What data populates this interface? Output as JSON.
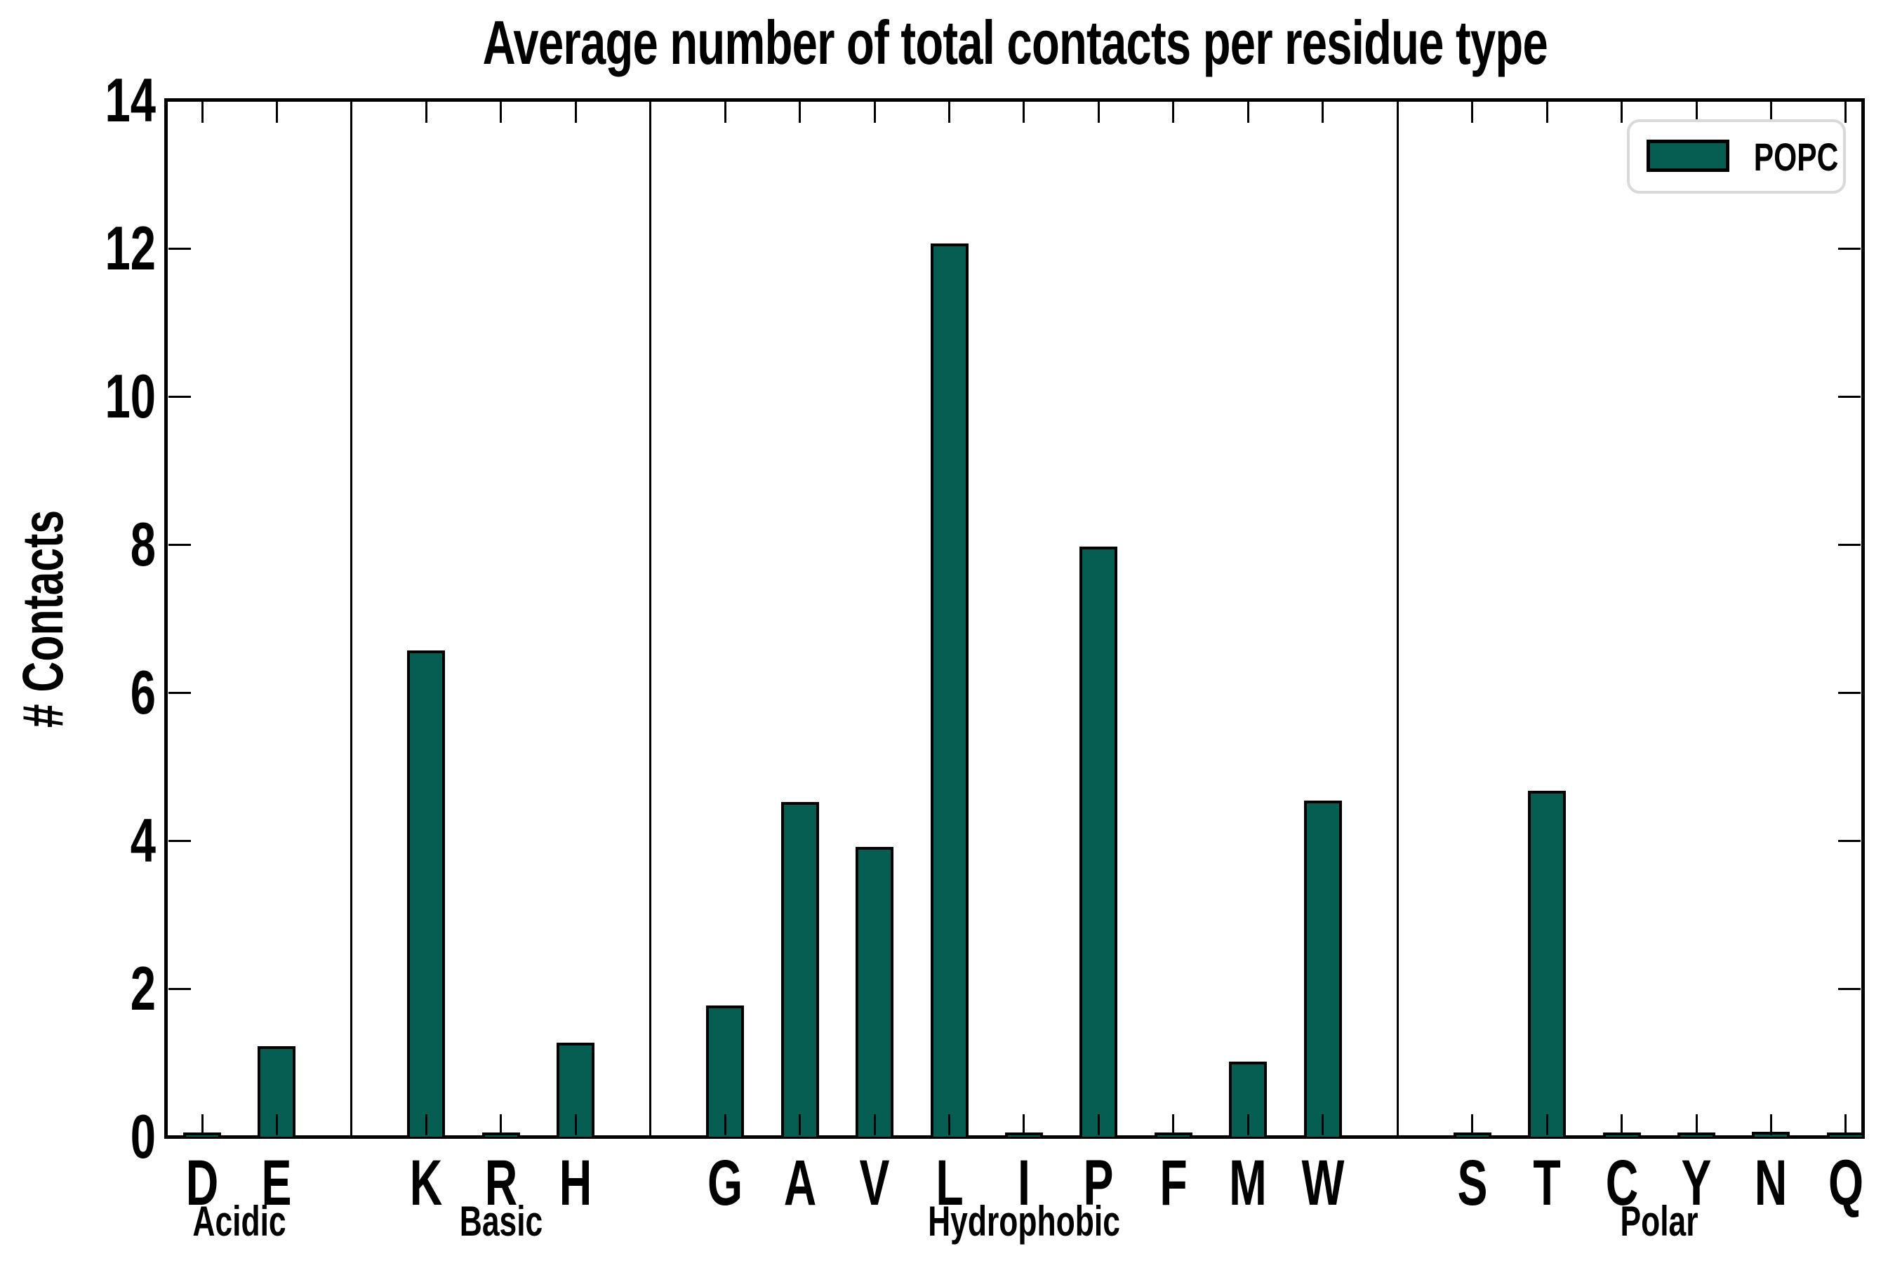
{
  "chart_data": {
    "type": "bar",
    "title": "Average number of total contacts per residue type",
    "ylabel": "# Contacts",
    "xlabel": "",
    "ylim": [
      0,
      14
    ],
    "yticks": [
      0,
      2,
      4,
      6,
      8,
      10,
      12,
      14
    ],
    "grid": false,
    "legend": {
      "label": "POPC",
      "position": "upper right"
    },
    "series_name": "POPC",
    "groups": [
      {
        "name": "Acidic",
        "categories": [
          "D",
          "E"
        ],
        "values": [
          0.04,
          1.2
        ]
      },
      {
        "name": "Basic",
        "categories": [
          "K",
          "R",
          "H"
        ],
        "values": [
          6.55,
          0.04,
          1.25
        ]
      },
      {
        "name": "Hydrophobic",
        "categories": [
          "G",
          "A",
          "V",
          "L",
          "I",
          "P",
          "F",
          "M",
          "W"
        ],
        "values": [
          1.75,
          4.5,
          3.9,
          12.05,
          0.04,
          7.95,
          0.04,
          1.0,
          4.52
        ]
      },
      {
        "name": "Polar",
        "categories": [
          "S",
          "T",
          "C",
          "Y",
          "N",
          "Q"
        ],
        "values": [
          0.04,
          4.65,
          0.04,
          0.04,
          0.05,
          0.04
        ]
      }
    ]
  },
  "colors": {
    "bar_fill": "#065e52",
    "bar_edge": "#000000",
    "axis": "#000000",
    "separator": "#000000",
    "legend_border": "#d9d9d9",
    "background": "#ffffff"
  }
}
